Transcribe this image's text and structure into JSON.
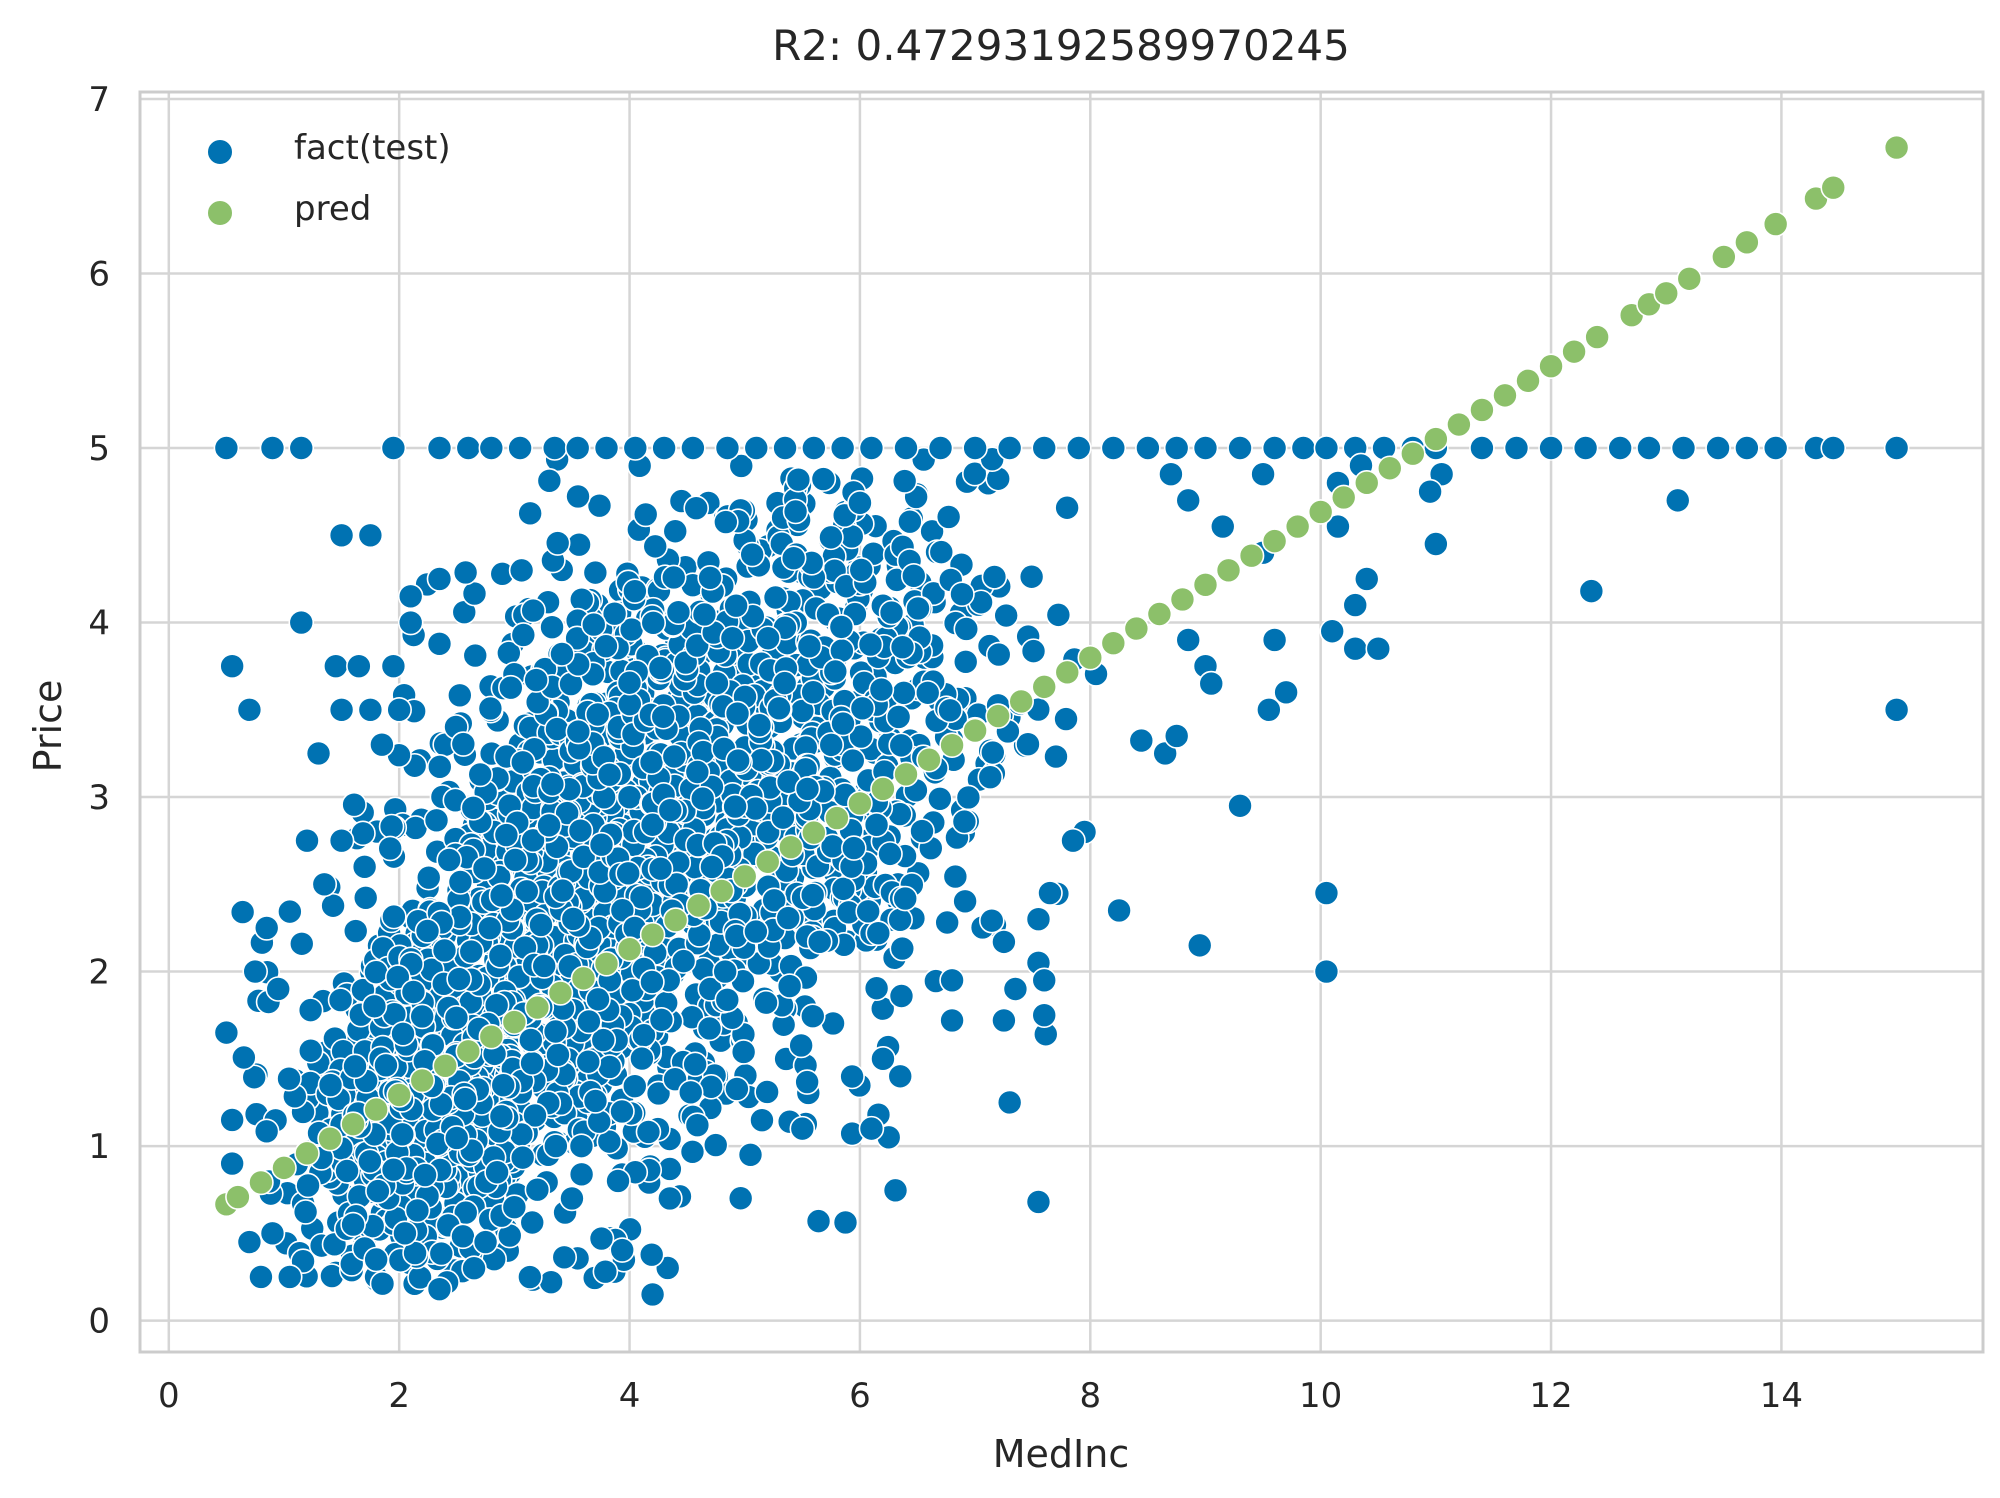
{
  "chart_data": {
    "type": "scatter",
    "title": "R2: 0.47293192589970245",
    "xlabel": "MedInc",
    "ylabel": "Price",
    "xlim": [
      -0.25,
      15.75
    ],
    "ylim": [
      -0.18,
      7.04
    ],
    "xticks": [
      0,
      2,
      4,
      6,
      8,
      10,
      12,
      14
    ],
    "yticks": [
      0,
      1,
      2,
      3,
      4,
      5,
      6,
      7
    ],
    "xtick_labels": [
      "0",
      "2",
      "4",
      "6",
      "8",
      "10",
      "12",
      "14"
    ],
    "ytick_labels": [
      "0",
      "1",
      "2",
      "3",
      "4",
      "5",
      "6",
      "7"
    ],
    "grid": true,
    "legend_position": "top-left",
    "colors": {
      "fact": "#0072B2",
      "pred": "#8CC06A",
      "grid": "#d5d5d5",
      "frame": "#cccccc"
    },
    "series": [
      {
        "name": "fact(test)",
        "color": "#0072B2",
        "points": [
          [
            0.5,
            5.0
          ],
          [
            0.9,
            5.0
          ],
          [
            1.15,
            5.0
          ],
          [
            1.95,
            5.0
          ],
          [
            2.35,
            5.0
          ],
          [
            2.6,
            5.0
          ],
          [
            2.8,
            5.0
          ],
          [
            3.05,
            5.0
          ],
          [
            3.35,
            5.0
          ],
          [
            3.55,
            5.0
          ],
          [
            3.8,
            5.0
          ],
          [
            4.05,
            5.0
          ],
          [
            4.3,
            5.0
          ],
          [
            4.55,
            5.0
          ],
          [
            4.85,
            5.0
          ],
          [
            5.1,
            5.0
          ],
          [
            5.35,
            5.0
          ],
          [
            5.6,
            5.0
          ],
          [
            5.85,
            5.0
          ],
          [
            6.1,
            5.0
          ],
          [
            6.4,
            5.0
          ],
          [
            6.7,
            5.0
          ],
          [
            7.0,
            5.0
          ],
          [
            7.3,
            5.0
          ],
          [
            7.6,
            5.0
          ],
          [
            7.9,
            5.0
          ],
          [
            8.2,
            5.0
          ],
          [
            8.5,
            5.0
          ],
          [
            8.75,
            5.0
          ],
          [
            9.0,
            5.0
          ],
          [
            9.3,
            5.0
          ],
          [
            9.6,
            5.0
          ],
          [
            9.85,
            5.0
          ],
          [
            10.05,
            5.0
          ],
          [
            10.3,
            5.0
          ],
          [
            10.55,
            5.0
          ],
          [
            10.8,
            5.0
          ],
          [
            11.0,
            5.0
          ],
          [
            11.4,
            5.0
          ],
          [
            11.7,
            5.0
          ],
          [
            12.0,
            5.0
          ],
          [
            12.3,
            5.0
          ],
          [
            12.6,
            5.0
          ],
          [
            12.85,
            5.0
          ],
          [
            13.15,
            5.0
          ],
          [
            13.45,
            5.0
          ],
          [
            13.7,
            5.0
          ],
          [
            13.95,
            5.0
          ],
          [
            14.3,
            5.0
          ],
          [
            14.45,
            5.0
          ],
          [
            15.0,
            5.0
          ],
          [
            0.55,
            3.75
          ],
          [
            0.7,
            3.5
          ],
          [
            1.15,
            4.0
          ],
          [
            1.5,
            4.5
          ],
          [
            1.75,
            4.5
          ],
          [
            1.45,
            3.75
          ],
          [
            1.65,
            3.75
          ],
          [
            1.95,
            3.75
          ],
          [
            1.5,
            3.5
          ],
          [
            1.75,
            3.5
          ],
          [
            2.0,
            3.5
          ],
          [
            1.3,
            3.25
          ],
          [
            1.85,
            3.3
          ],
          [
            2.1,
            4.15
          ],
          [
            2.1,
            4.0
          ],
          [
            2.35,
            4.25
          ],
          [
            0.5,
            1.65
          ],
          [
            0.55,
            1.15
          ],
          [
            0.55,
            0.9
          ],
          [
            0.7,
            0.45
          ],
          [
            0.8,
            0.25
          ],
          [
            1.05,
            0.25
          ],
          [
            0.9,
            0.5
          ],
          [
            0.75,
            2.0
          ],
          [
            0.85,
            2.25
          ],
          [
            0.95,
            1.9
          ],
          [
            1.2,
            2.75
          ],
          [
            1.35,
            2.5
          ],
          [
            1.5,
            2.75
          ],
          [
            1.7,
            2.6
          ],
          [
            2.35,
            0.18
          ],
          [
            2.65,
            0.3
          ],
          [
            2.75,
            0.45
          ],
          [
            3.0,
            0.65
          ],
          [
            4.2,
            0.15
          ],
          [
            4.35,
            0.7
          ],
          [
            7.55,
            0.68
          ],
          [
            7.3,
            1.25
          ],
          [
            6.25,
            1.05
          ],
          [
            6.1,
            1.1
          ],
          [
            8.25,
            2.35
          ],
          [
            8.95,
            2.15
          ],
          [
            9.3,
            2.95
          ],
          [
            10.05,
            2.45
          ],
          [
            10.05,
            2.0
          ],
          [
            9.55,
            3.5
          ],
          [
            9.7,
            3.6
          ],
          [
            9.6,
            3.9
          ],
          [
            10.1,
            3.95
          ],
          [
            10.3,
            3.85
          ],
          [
            10.5,
            3.85
          ],
          [
            10.3,
            4.1
          ],
          [
            10.4,
            4.25
          ],
          [
            10.15,
            4.55
          ],
          [
            10.15,
            4.8
          ],
          [
            10.35,
            4.9
          ],
          [
            11.0,
            4.45
          ],
          [
            11.05,
            4.85
          ],
          [
            10.95,
            4.75
          ],
          [
            13.1,
            4.7
          ],
          [
            12.35,
            4.18
          ],
          [
            15.0,
            3.5
          ],
          [
            9.15,
            4.55
          ],
          [
            9.5,
            4.4
          ],
          [
            9.5,
            4.85
          ],
          [
            8.85,
            4.7
          ],
          [
            8.7,
            4.85
          ],
          [
            8.85,
            3.9
          ],
          [
            9.0,
            3.75
          ],
          [
            9.05,
            3.65
          ],
          [
            8.65,
            3.25
          ],
          [
            8.75,
            3.35
          ],
          [
            7.95,
            2.8
          ],
          [
            7.85,
            2.75
          ],
          [
            7.65,
            2.45
          ],
          [
            7.55,
            2.3
          ],
          [
            7.55,
            2.05
          ],
          [
            7.6,
            1.95
          ],
          [
            7.6,
            1.75
          ],
          [
            7.35,
            1.9
          ],
          [
            7.25,
            1.72
          ],
          [
            7.25,
            2.17
          ],
          [
            6.8,
            1.95
          ],
          [
            6.8,
            1.72
          ],
          [
            6.2,
            1.5
          ],
          [
            6.35,
            1.4
          ],
          [
            5.5,
            1.1
          ],
          [
            5.05,
            0.95
          ],
          [
            4.05,
            0.85
          ],
          [
            3.9,
            0.8
          ],
          [
            3.2,
            0.75
          ],
          [
            3.5,
            0.7
          ],
          [
            2.85,
            0.85
          ],
          [
            1.8,
            0.35
          ],
          [
            2.05,
            0.5
          ],
          [
            1.6,
            0.55
          ]
        ],
        "cloud": [
          {
            "cx": 3.8,
            "cy": 2.55,
            "sx": 1.05,
            "sy": 0.95,
            "slope": 0.45,
            "n": 1500
          },
          {
            "cx": 2.2,
            "cy": 1.3,
            "sx": 0.55,
            "sy": 0.6,
            "slope": 0.3,
            "n": 550
          },
          {
            "cx": 5.8,
            "cy": 3.3,
            "sx": 0.8,
            "sy": 0.9,
            "slope": 0.35,
            "n": 500
          }
        ]
      },
      {
        "name": "pred",
        "color": "#8CC06A",
        "line": {
          "slope": 0.4176,
          "intercept": 0.4575,
          "x_from": 0.5,
          "x_to": 15.0
        },
        "x": [
          0.5,
          0.6,
          0.8,
          1.0,
          1.2,
          1.4,
          1.6,
          1.8,
          2.0,
          2.2,
          2.4,
          2.6,
          2.8,
          3.0,
          3.2,
          3.4,
          3.6,
          3.8,
          4.0,
          4.2,
          4.4,
          4.6,
          4.8,
          5.0,
          5.2,
          5.4,
          5.6,
          5.8,
          6.0,
          6.2,
          6.4,
          6.6,
          6.8,
          7.0,
          7.2,
          7.4,
          7.6,
          7.8,
          8.0,
          8.2,
          8.4,
          8.6,
          8.8,
          9.0,
          9.2,
          9.4,
          9.6,
          9.8,
          10.0,
          10.2,
          10.4,
          10.6,
          10.8,
          11.0,
          11.2,
          11.4,
          11.6,
          11.8,
          12.0,
          12.2,
          12.4,
          12.7,
          12.85,
          13.0,
          13.2,
          13.5,
          13.7,
          13.95,
          14.3,
          14.45,
          15.0
        ]
      }
    ]
  }
}
